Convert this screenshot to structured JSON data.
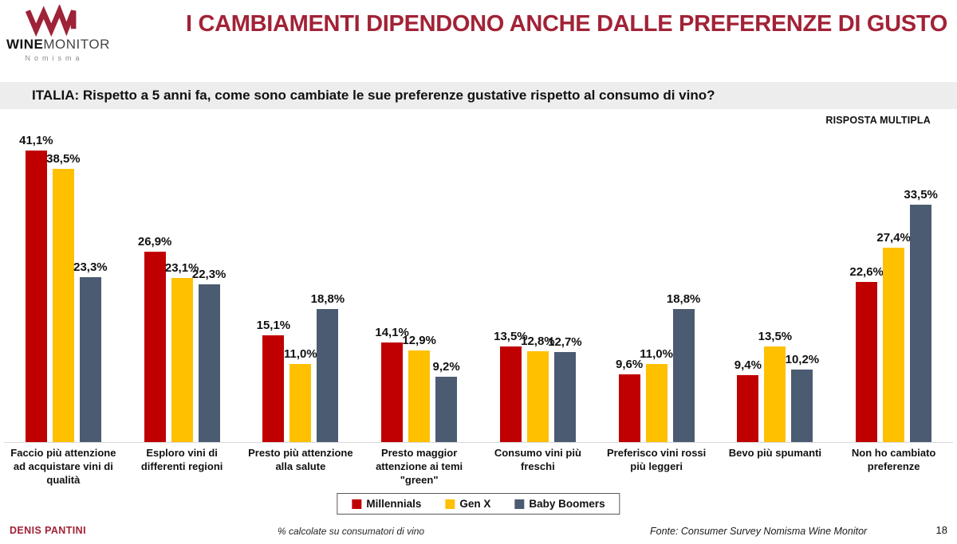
{
  "logo": {
    "wine": "WINE",
    "monitor": "MONITOR",
    "sub": "Nomisma",
    "mark_color": "#9E2238"
  },
  "header": {
    "title": "I CAMBIAMENTI DIPENDONO ANCHE DALLE PREFERENZE DI GUSTO",
    "title_color": "#A22236"
  },
  "question": "ITALIA: Rispetto a 5 anni fa, come sono cambiate le sue preferenze gustative rispetto al consumo di vino?",
  "note_multiple": "RISPOSTA MULTIPLA",
  "chart_data": {
    "type": "bar",
    "title": "",
    "xlabel": "",
    "ylabel": "",
    "ylim": [
      0,
      45
    ],
    "grid": false,
    "legend_position": "bottom",
    "value_suffix": "%",
    "decimal_separator": ",",
    "categories": [
      "Faccio più attenzione ad acquistare vini di qualità",
      "Esploro vini di differenti regioni",
      "Presto più attenzione alla salute",
      "Presto maggior attenzione ai temi \"green\"",
      "Consumo vini più freschi",
      "Preferisco vini rossi più leggeri",
      "Bevo più spumanti",
      "Non ho cambiato preferenze"
    ],
    "series": [
      {
        "name": "Millennials",
        "color": "#C00000",
        "values": [
          41.1,
          26.9,
          15.1,
          14.1,
          13.5,
          9.6,
          9.4,
          22.6
        ]
      },
      {
        "name": "Gen X",
        "color": "#FFC000",
        "values": [
          38.5,
          23.1,
          11.0,
          12.9,
          12.8,
          11.0,
          13.5,
          27.4
        ]
      },
      {
        "name": "Baby Boomers",
        "color": "#4B5B71",
        "values": [
          23.3,
          22.3,
          18.8,
          9.2,
          12.7,
          18.8,
          10.2,
          33.5
        ]
      }
    ]
  },
  "footer": {
    "author": "DENIS PANTINI",
    "note": "% calcolate su consumatori di vino",
    "source": "Fonte: Consumer Survey Nomisma Wine Monitor",
    "page": "18"
  }
}
